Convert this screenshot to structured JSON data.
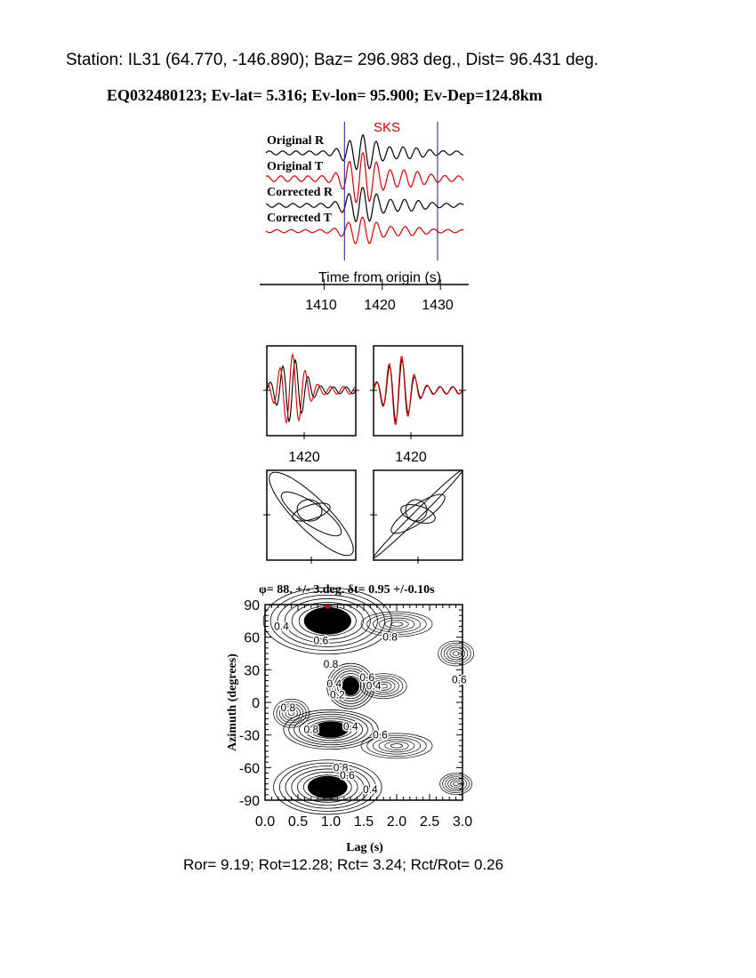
{
  "header": {
    "station_line": "Station: IL31 (64.770, -146.890); Baz=  296.983 deg., Dist=   96.431 deg.",
    "event_line": "EQ032480123; Ev-lat=   5.316; Ev-lon=  95.900; Ev-Dep=124.8km"
  },
  "footer": {
    "ratios": "Ror= 9.19; Rot=12.28; Rct= 3.24; Rct/Rot= 0.26"
  },
  "colors": {
    "black_trace": "#000000",
    "red_trace": "#d40000",
    "window_marker": "#1a1aa6",
    "phase_label": "#d40000"
  },
  "chart_data": [
    {
      "type": "line",
      "id": "seismograms",
      "phase_label": "SKS",
      "traces": [
        "Original R",
        "Original T",
        "Corrected R",
        "Corrected T"
      ],
      "xlabel": "Time from origin (s)",
      "xticks": [
        "1410",
        "1420",
        "1430"
      ],
      "xlim": [
        1400,
        1434
      ],
      "window": [
        1413.5,
        1429.5
      ]
    },
    {
      "type": "line",
      "id": "particle-waveforms",
      "panels": [
        "original",
        "corrected"
      ],
      "xticks": [
        "1420",
        "1420"
      ]
    },
    {
      "type": "scatter",
      "id": "particle-motion",
      "panels": [
        "original",
        "corrected"
      ]
    },
    {
      "type": "heatmap",
      "id": "energy-grid",
      "title": "φ= 88. +/- 3.deg. δt= 0.95 +/-0.10s",
      "xlabel": "Lag (s)",
      "ylabel": "Azimuth (degrees)",
      "xlim": [
        0,
        3
      ],
      "ylim": [
        -90,
        90
      ],
      "xticks": [
        "0.0",
        "0.5",
        "1.0",
        "1.5",
        "2.0",
        "2.5",
        "3.0"
      ],
      "yticks": [
        "90",
        "60",
        "30",
        "0",
        "-30",
        "-60",
        "-90"
      ],
      "best": {
        "lag": 0.95,
        "azimuth": 88
      },
      "contour_labels": [
        "0.4",
        "0.6",
        "0.8",
        "0.8",
        "0.6",
        "0.4",
        "0.4",
        "0.2",
        "0.6",
        "0.8",
        "0.8",
        "0.4",
        "0.6",
        "0.8",
        "0.6",
        "0.4"
      ]
    }
  ]
}
